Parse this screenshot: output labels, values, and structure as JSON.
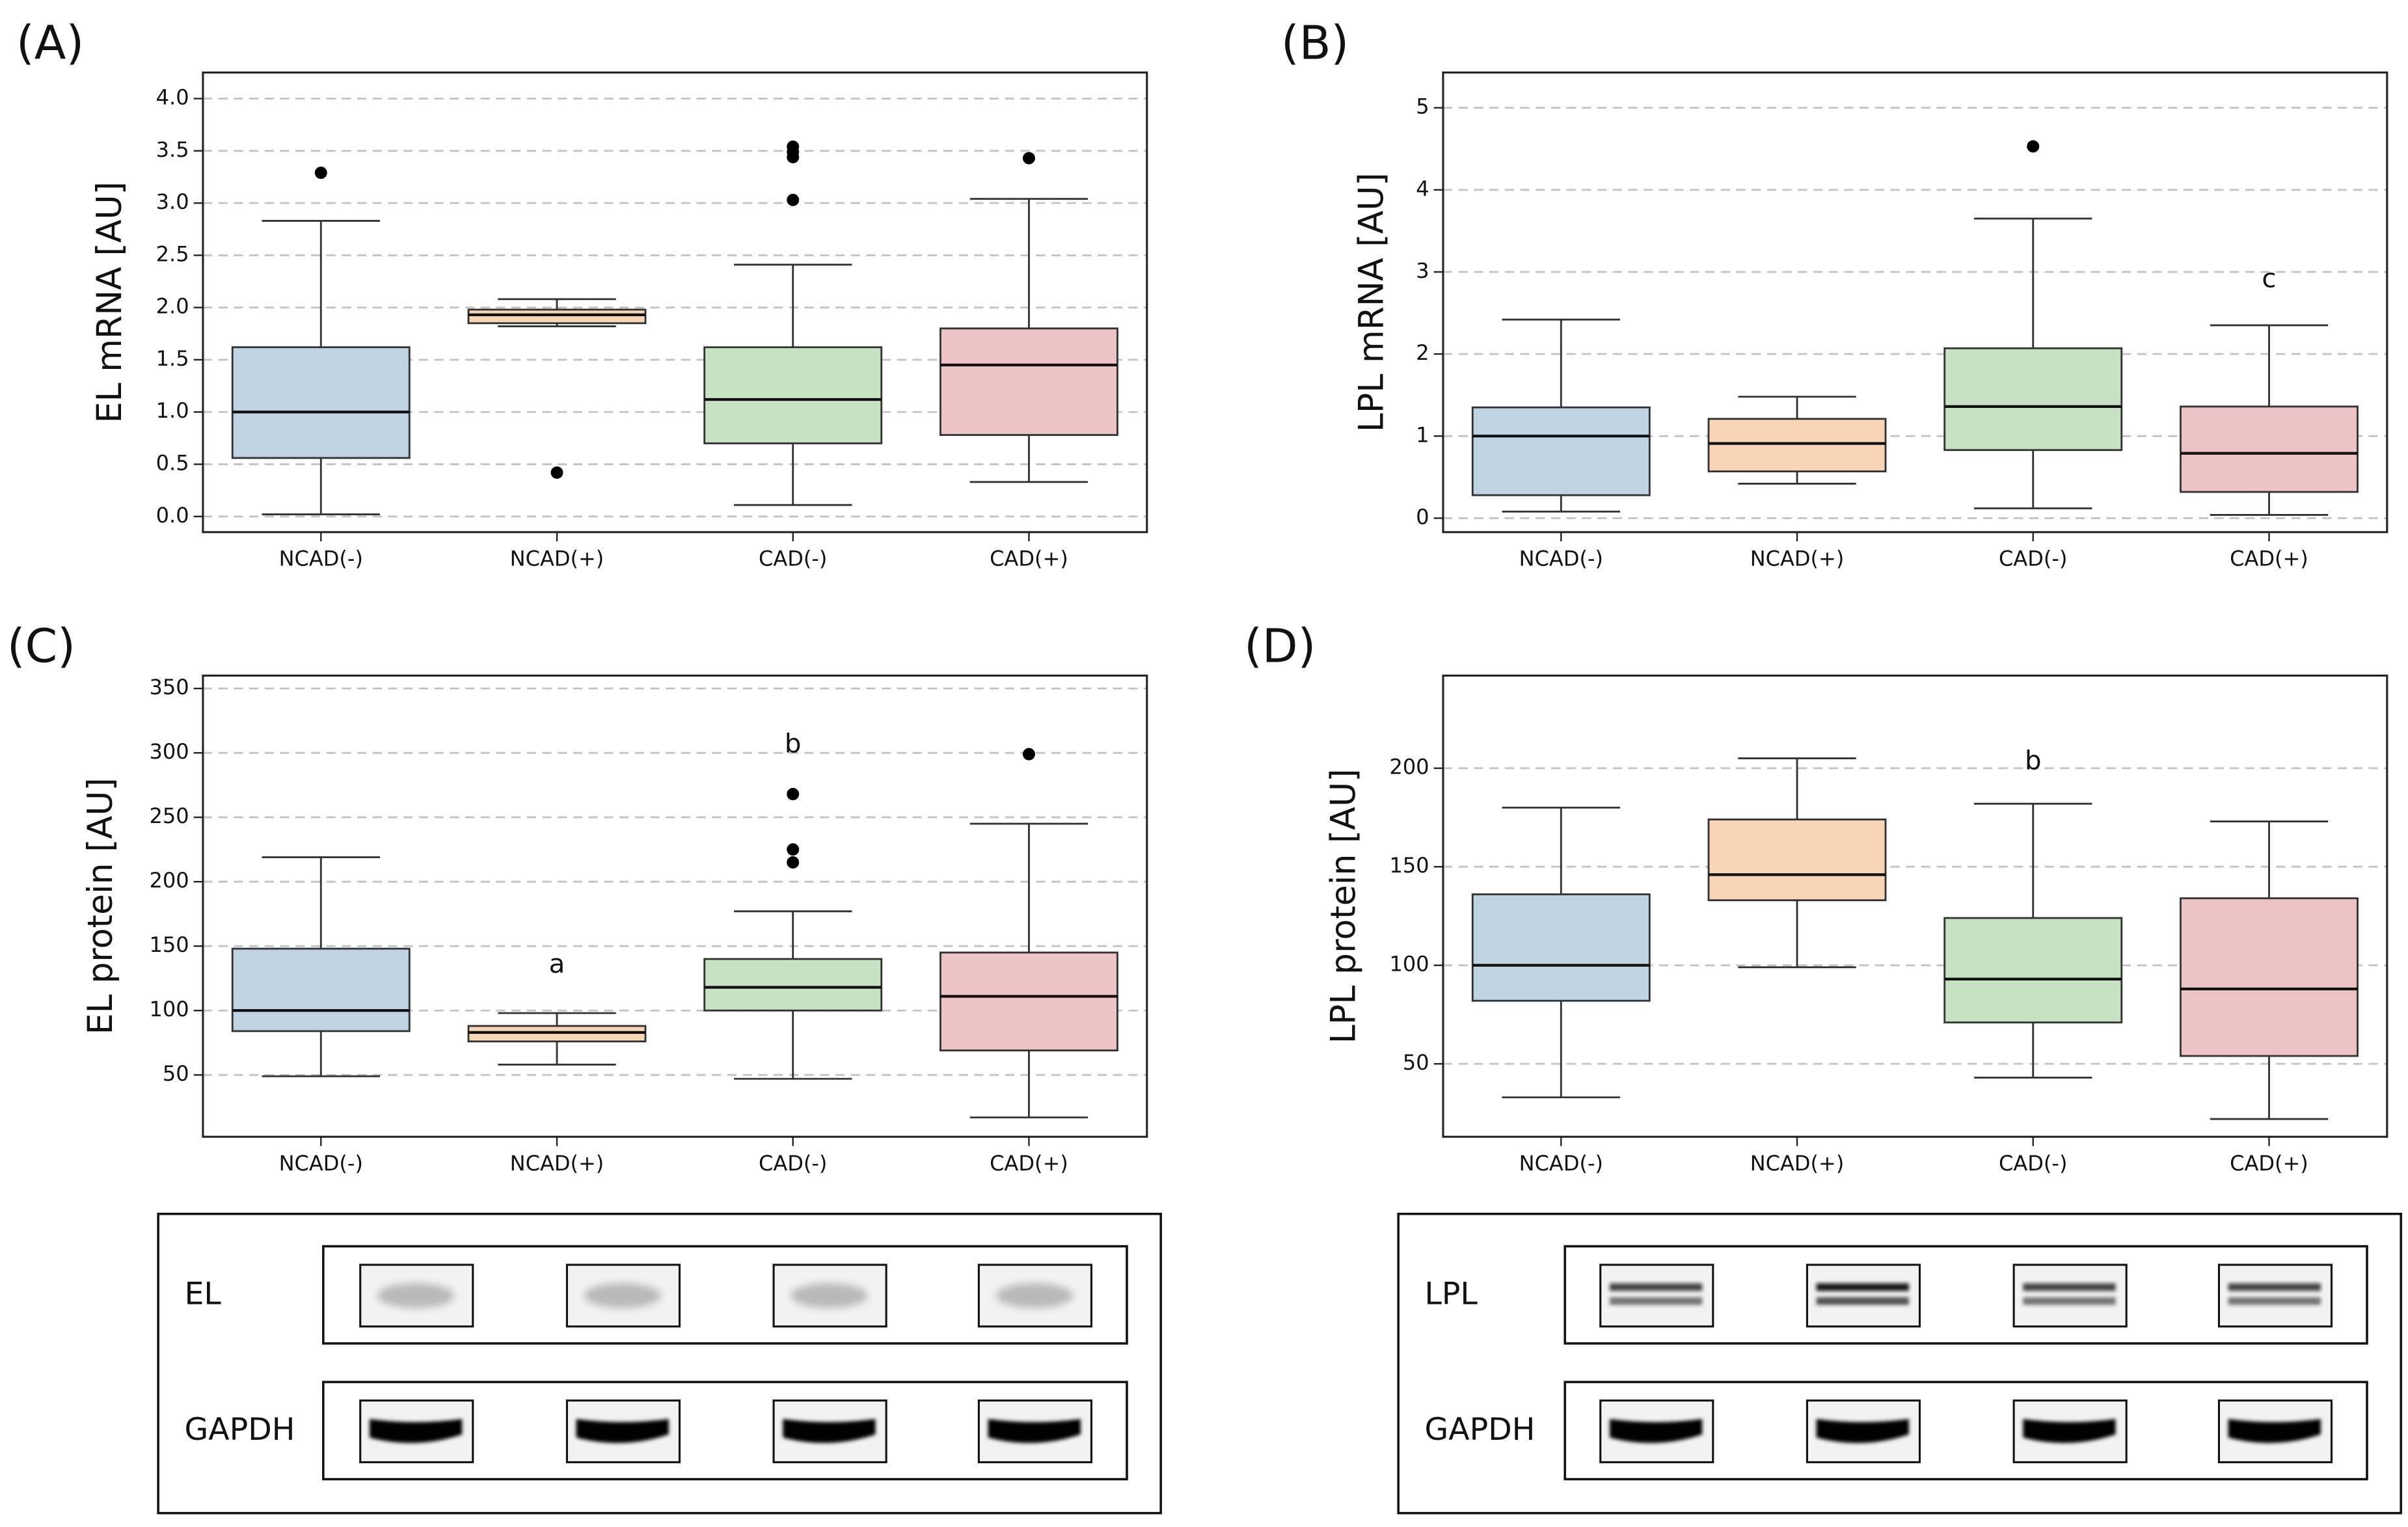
{
  "chart_data": [
    {
      "type": "box",
      "panel": "(A)",
      "ylabel": "EL mRNA [AU]",
      "categories": [
        "NCAD(-)",
        "NCAD(+)",
        "CAD(-)",
        "CAD(+)"
      ],
      "colors": [
        "#c0d3e3",
        "#f7d5b6",
        "#c6e2c3",
        "#ecc4c6"
      ],
      "boxes": [
        {
          "low": 0.02,
          "q1": 0.56,
          "median": 1.0,
          "q3": 1.62,
          "high": 2.83,
          "outliers": [
            3.29
          ]
        },
        {
          "low": 1.82,
          "q1": 1.85,
          "median": 1.93,
          "q3": 1.98,
          "high": 2.08,
          "outliers": [
            0.42
          ]
        },
        {
          "low": 0.11,
          "q1": 0.7,
          "median": 1.12,
          "q3": 1.62,
          "high": 2.41,
          "outliers": [
            3.03,
            3.44,
            3.49,
            3.54
          ]
        },
        {
          "low": 0.33,
          "q1": 0.78,
          "median": 1.45,
          "q3": 1.8,
          "high": 3.04,
          "outliers": [
            3.43
          ]
        }
      ],
      "annotations": [],
      "ylim": [
        -0.15,
        4.25
      ],
      "yticks": [
        {
          "value": 0,
          "label": "0.0"
        },
        0.5,
        {
          "value": 1,
          "label": "1.0"
        },
        1.5,
        {
          "value": 2,
          "label": "2.0"
        },
        2.5,
        {
          "value": 3,
          "label": "3.0"
        },
        3.5,
        {
          "value": 4,
          "label": "4.0"
        }
      ],
      "grid": true
    },
    {
      "type": "box",
      "panel": "(B)",
      "ylabel": "LPL mRNA [AU]",
      "categories": [
        "NCAD(-)",
        "NCAD(+)",
        "CAD(-)",
        "CAD(+)"
      ],
      "colors": [
        "#c0d3e3",
        "#f7d5b6",
        "#c6e2c3",
        "#ecc4c6"
      ],
      "boxes": [
        {
          "low": 0.08,
          "q1": 0.28,
          "median": 1.0,
          "q3": 1.35,
          "high": 2.42,
          "outliers": []
        },
        {
          "low": 0.42,
          "q1": 0.57,
          "median": 0.91,
          "q3": 1.21,
          "high": 1.48,
          "outliers": []
        },
        {
          "low": 0.12,
          "q1": 0.83,
          "median": 1.36,
          "q3": 2.07,
          "high": 3.65,
          "outliers": [
            4.53
          ]
        },
        {
          "low": 0.04,
          "q1": 0.32,
          "median": 0.79,
          "q3": 1.36,
          "high": 2.35,
          "outliers": []
        }
      ],
      "annotations": [
        {
          "text": "c",
          "x": "CAD(+)",
          "y": 2.9
        }
      ],
      "ylim": [
        -0.17,
        5.43
      ],
      "yticks": [
        0,
        1,
        2,
        3,
        4,
        5
      ],
      "grid": true
    },
    {
      "type": "box",
      "panel": "(C)",
      "ylabel": "EL protein [AU]",
      "categories": [
        "NCAD(-)",
        "NCAD(+)",
        "CAD(-)",
        "CAD(+)"
      ],
      "colors": [
        "#c0d3e3",
        "#f7d5b6",
        "#c6e2c3",
        "#ecc4c6"
      ],
      "boxes": [
        {
          "low": 49,
          "q1": 84,
          "median": 100,
          "q3": 148,
          "high": 219,
          "outliers": []
        },
        {
          "low": 58,
          "q1": 76,
          "median": 83,
          "q3": 88,
          "high": 98,
          "outliers": []
        },
        {
          "low": 47,
          "q1": 100,
          "median": 118,
          "q3": 140,
          "high": 177,
          "outliers": [
            215,
            225,
            268
          ]
        },
        {
          "low": 17,
          "q1": 69,
          "median": 111,
          "q3": 145,
          "high": 245,
          "outliers": [
            299
          ]
        }
      ],
      "annotations": [
        {
          "text": "a",
          "x": "NCAD(+)",
          "y": 135
        },
        {
          "text": "b",
          "x": "CAD(-)",
          "y": 306
        }
      ],
      "ylim": [
        2,
        360
      ],
      "yticks": [
        50,
        100,
        150,
        200,
        250,
        300,
        350
      ],
      "grid": true
    },
    {
      "type": "box",
      "panel": "(D)",
      "ylabel": "LPL protein [AU]",
      "categories": [
        "NCAD(-)",
        "NCAD(+)",
        "CAD(-)",
        "CAD(+)"
      ],
      "colors": [
        "#c0d3e3",
        "#f7d5b6",
        "#c6e2c3",
        "#ecc4c6"
      ],
      "boxes": [
        {
          "low": 33,
          "q1": 82,
          "median": 100,
          "q3": 136,
          "high": 180,
          "outliers": []
        },
        {
          "low": 99,
          "q1": 133,
          "median": 146,
          "q3": 174,
          "high": 205,
          "outliers": []
        },
        {
          "low": 43,
          "q1": 71,
          "median": 93,
          "q3": 124,
          "high": 182,
          "outliers": []
        },
        {
          "low": 22,
          "q1": 54,
          "median": 88,
          "q3": 134,
          "high": 173,
          "outliers": []
        }
      ],
      "annotations": [
        {
          "text": "b",
          "x": "CAD(-)",
          "y": 203
        }
      ],
      "ylim": [
        13,
        247
      ],
      "yticks": [
        50,
        100,
        150,
        200
      ],
      "grid": true
    }
  ],
  "blots": [
    {
      "labels": [
        "EL",
        "GAPDH"
      ]
    },
    {
      "labels": [
        "LPL",
        "GAPDH"
      ]
    }
  ]
}
